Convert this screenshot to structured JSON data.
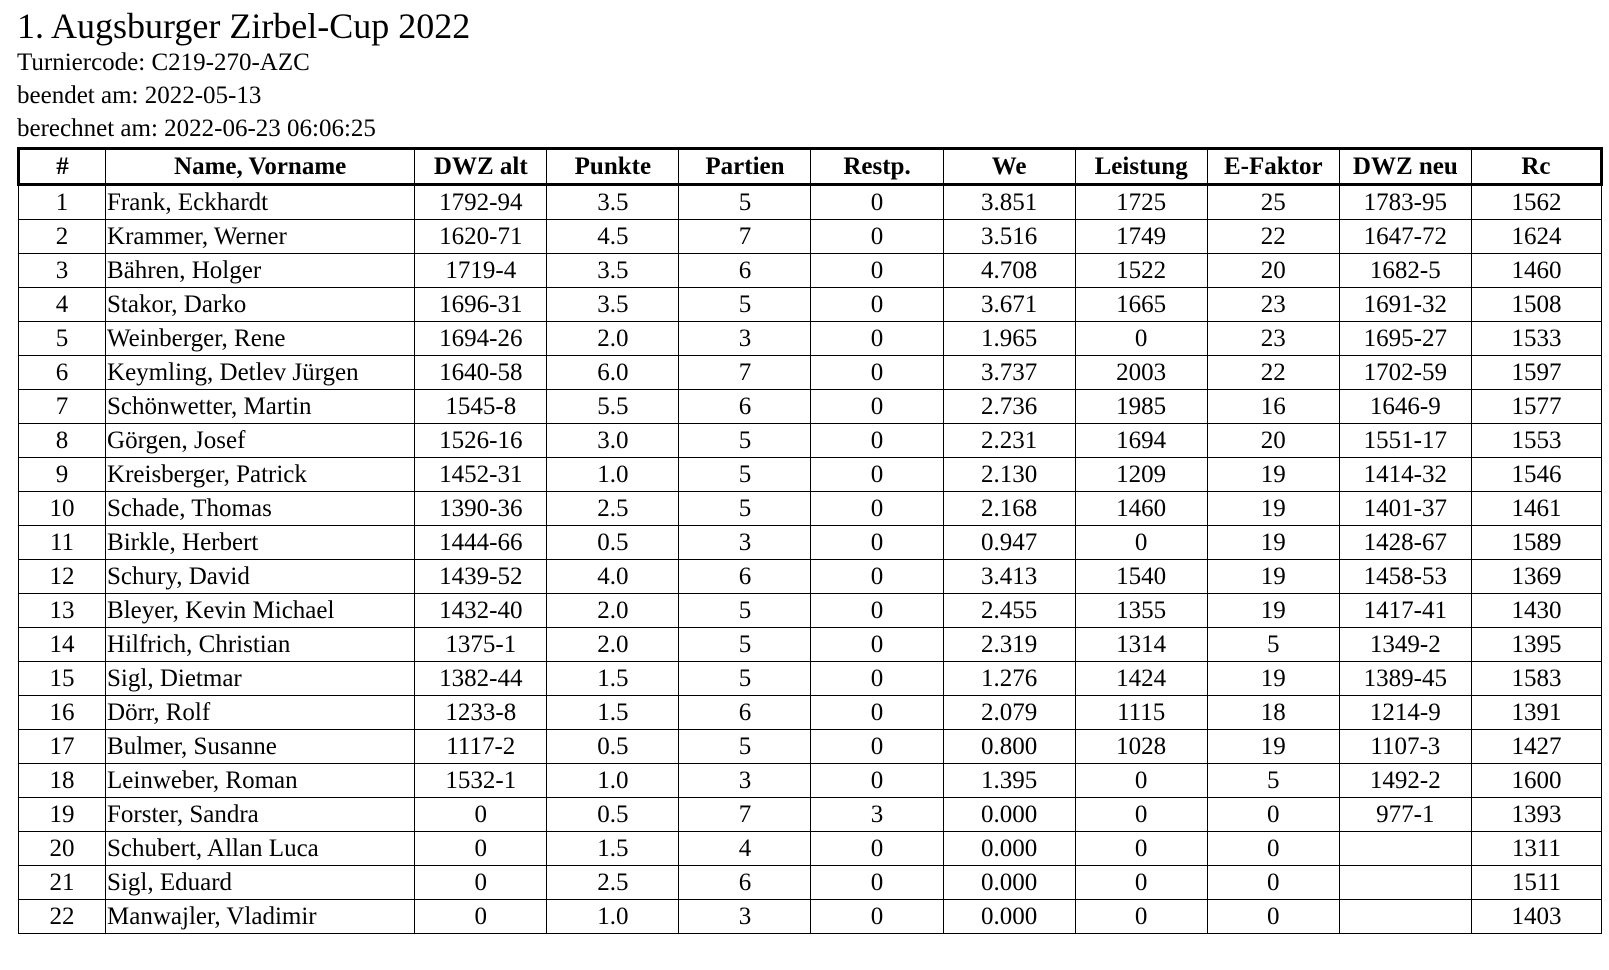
{
  "document": {
    "title": "1. Augsburger Zirbel-Cup 2022",
    "code_line": "Turniercode: C219-270-AZC",
    "ended_line": "beendet am: 2022-05-13",
    "computed_line": "berechnet am: 2022-06-23 06:06:25"
  },
  "table": {
    "headers": [
      "#",
      "Name, Vorname",
      "DWZ alt",
      "Punkte",
      "Partien",
      "Restp.",
      "We",
      "Leistung",
      "E-Faktor",
      "DWZ neu",
      "Rc"
    ],
    "rows": [
      [
        "1",
        "Frank, Eckhardt",
        "1792-94",
        "3.5",
        "5",
        "0",
        "3.851",
        "1725",
        "25",
        "1783-95",
        "1562"
      ],
      [
        "2",
        "Krammer, Werner",
        "1620-71",
        "4.5",
        "7",
        "0",
        "3.516",
        "1749",
        "22",
        "1647-72",
        "1624"
      ],
      [
        "3",
        "Bähren, Holger",
        "1719-4",
        "3.5",
        "6",
        "0",
        "4.708",
        "1522",
        "20",
        "1682-5",
        "1460"
      ],
      [
        "4",
        "Stakor, Darko",
        "1696-31",
        "3.5",
        "5",
        "0",
        "3.671",
        "1665",
        "23",
        "1691-32",
        "1508"
      ],
      [
        "5",
        "Weinberger, Rene",
        "1694-26",
        "2.0",
        "3",
        "0",
        "1.965",
        "0",
        "23",
        "1695-27",
        "1533"
      ],
      [
        "6",
        "Keymling, Detlev Jürgen",
        "1640-58",
        "6.0",
        "7",
        "0",
        "3.737",
        "2003",
        "22",
        "1702-59",
        "1597"
      ],
      [
        "7",
        "Schönwetter, Martin",
        "1545-8",
        "5.5",
        "6",
        "0",
        "2.736",
        "1985",
        "16",
        "1646-9",
        "1577"
      ],
      [
        "8",
        "Görgen, Josef",
        "1526-16",
        "3.0",
        "5",
        "0",
        "2.231",
        "1694",
        "20",
        "1551-17",
        "1553"
      ],
      [
        "9",
        "Kreisberger, Patrick",
        "1452-31",
        "1.0",
        "5",
        "0",
        "2.130",
        "1209",
        "19",
        "1414-32",
        "1546"
      ],
      [
        "10",
        "Schade, Thomas",
        "1390-36",
        "2.5",
        "5",
        "0",
        "2.168",
        "1460",
        "19",
        "1401-37",
        "1461"
      ],
      [
        "11",
        "Birkle, Herbert",
        "1444-66",
        "0.5",
        "3",
        "0",
        "0.947",
        "0",
        "19",
        "1428-67",
        "1589"
      ],
      [
        "12",
        "Schury, David",
        "1439-52",
        "4.0",
        "6",
        "0",
        "3.413",
        "1540",
        "19",
        "1458-53",
        "1369"
      ],
      [
        "13",
        "Bleyer, Kevin Michael",
        "1432-40",
        "2.0",
        "5",
        "0",
        "2.455",
        "1355",
        "19",
        "1417-41",
        "1430"
      ],
      [
        "14",
        "Hilfrich, Christian",
        "1375-1",
        "2.0",
        "5",
        "0",
        "2.319",
        "1314",
        "5",
        "1349-2",
        "1395"
      ],
      [
        "15",
        "Sigl, Dietmar",
        "1382-44",
        "1.5",
        "5",
        "0",
        "1.276",
        "1424",
        "19",
        "1389-45",
        "1583"
      ],
      [
        "16",
        "Dörr, Rolf",
        "1233-8",
        "1.5",
        "6",
        "0",
        "2.079",
        "1115",
        "18",
        "1214-9",
        "1391"
      ],
      [
        "17",
        "Bulmer, Susanne",
        "1117-2",
        "0.5",
        "5",
        "0",
        "0.800",
        "1028",
        "19",
        "1107-3",
        "1427"
      ],
      [
        "18",
        "Leinweber, Roman",
        "1532-1",
        "1.0",
        "3",
        "0",
        "1.395",
        "0",
        "5",
        "1492-2",
        "1600"
      ],
      [
        "19",
        "Forster, Sandra",
        "0",
        "0.5",
        "7",
        "3",
        "0.000",
        "0",
        "0",
        "977-1",
        "1393"
      ],
      [
        "20",
        "Schubert, Allan Luca",
        "0",
        "1.5",
        "4",
        "0",
        "0.000",
        "0",
        "0",
        "",
        "1311"
      ],
      [
        "21",
        "Sigl, Eduard",
        "0",
        "2.5",
        "6",
        "0",
        "0.000",
        "0",
        "0",
        "",
        "1511"
      ],
      [
        "22",
        "Manwajler, Vladimir",
        "0",
        "1.0",
        "3",
        "0",
        "0.000",
        "0",
        "0",
        "",
        "1403"
      ]
    ]
  }
}
